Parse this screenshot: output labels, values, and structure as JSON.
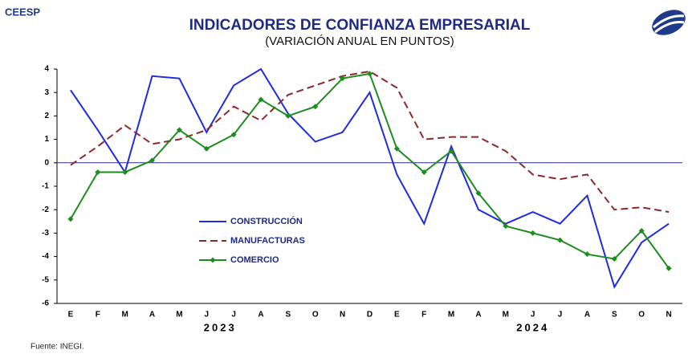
{
  "brand": "CEESP",
  "source": "Fuente: INEGI.",
  "chart_data": {
    "type": "line",
    "title": "INDICADORES DE CONFIANZA EMPRESARIAL",
    "subtitle": "(VARIACIÓN ANUAL EN PUNTOS)",
    "categories": [
      "E",
      "F",
      "M",
      "A",
      "M",
      "J",
      "J",
      "A",
      "S",
      "O",
      "N",
      "D",
      "E",
      "F",
      "M",
      "A",
      "M",
      "J",
      "J",
      "A",
      "S",
      "O",
      "N"
    ],
    "year_labels": [
      {
        "label": "2023",
        "from": 0,
        "to": 11
      },
      {
        "label": "2024",
        "from": 12,
        "to": 22
      }
    ],
    "series": [
      {
        "name": "CONSTRUCCIÓN",
        "color": "#1f2be0",
        "dash": false,
        "marker": "none",
        "values": [
          3.1,
          1.4,
          -0.4,
          3.7,
          3.6,
          1.3,
          3.3,
          4.0,
          2.1,
          0.9,
          1.3,
          3.0,
          -0.5,
          -2.6,
          0.7,
          -2.0,
          -2.6,
          -2.1,
          -2.6,
          -1.4,
          -5.3,
          -3.4,
          -2.6
        ]
      },
      {
        "name": "MANUFACTURAS",
        "color": "#8b2a2a",
        "dash": true,
        "marker": "none",
        "values": [
          -0.1,
          0.7,
          1.6,
          0.8,
          1.0,
          1.4,
          2.4,
          1.8,
          2.9,
          3.3,
          3.7,
          3.9,
          3.2,
          1.0,
          1.1,
          1.1,
          0.5,
          -0.5,
          -0.7,
          -0.5,
          -2.0,
          -1.9,
          -2.1
        ]
      },
      {
        "name": "COMERCIO",
        "color": "#1e8c1e",
        "dash": false,
        "marker": "diamond",
        "values": [
          -2.4,
          -0.4,
          -0.4,
          0.1,
          1.4,
          0.6,
          1.2,
          2.7,
          2.0,
          2.4,
          3.6,
          3.8,
          0.6,
          -0.4,
          0.5,
          -1.3,
          -2.7,
          -3.0,
          -3.3,
          -3.9,
          -4.1,
          -2.9,
          -4.5
        ]
      }
    ],
    "ylim": [
      -6,
      4
    ],
    "yticks": [
      -6,
      -5,
      -4,
      -3,
      -2,
      -1,
      0,
      1,
      2,
      3,
      4
    ],
    "grid": false
  }
}
